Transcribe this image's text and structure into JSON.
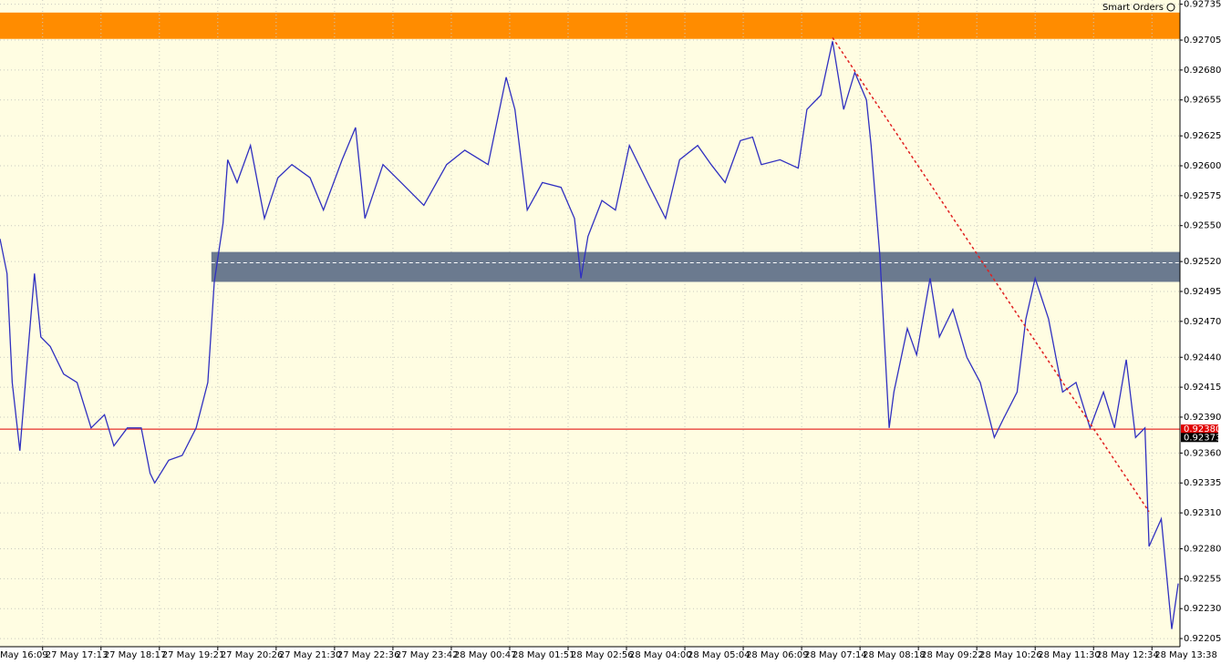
{
  "chart_data": {
    "type": "line",
    "widget_label": "Smart Orders",
    "color": "#3030c0",
    "background": "#fffde2",
    "grid": true,
    "xlim": [
      0.27,
      20.48
    ],
    "ylim": [
      0.921982,
      0.927385
    ],
    "xticks": [
      {
        "value": 0,
        "label": "May 16:09"
      },
      {
        "value": 1,
        "label": "27 May 17:13"
      },
      {
        "value": 2,
        "label": "27 May 18:17"
      },
      {
        "value": 3,
        "label": "27 May 19:21"
      },
      {
        "value": 4,
        "label": "27 May 20:26"
      },
      {
        "value": 5,
        "label": "27 May 21:30"
      },
      {
        "value": 6,
        "label": "27 May 22:36"
      },
      {
        "value": 7,
        "label": "27 May 23:42"
      },
      {
        "value": 8,
        "label": "28 May 00:47"
      },
      {
        "value": 9,
        "label": "28 May 01:51"
      },
      {
        "value": 10,
        "label": "28 May 02:56"
      },
      {
        "value": 11,
        "label": "28 May 04:00"
      },
      {
        "value": 12,
        "label": "28 May 05:04"
      },
      {
        "value": 13,
        "label": "28 May 06:09"
      },
      {
        "value": 14,
        "label": "28 May 07:14"
      },
      {
        "value": 15,
        "label": "28 May 08:18"
      },
      {
        "value": 16,
        "label": "28 May 09:22"
      },
      {
        "value": 17,
        "label": "28 May 10:26"
      },
      {
        "value": 18,
        "label": "28 May 11:30"
      },
      {
        "value": 19,
        "label": "28 May 12:34"
      },
      {
        "value": 20,
        "label": "28 May 13:38"
      }
    ],
    "yticks": [
      0.92735,
      0.92705,
      {
        "value": 0.9268,
        "label": "0.92680"
      },
      0.92655,
      0.92625,
      {
        "value": 0.926,
        "label": "0.92600"
      },
      0.92575,
      {
        "value": 0.9255,
        "label": "0.92550"
      },
      {
        "value": 0.9252,
        "label": "0.92520"
      },
      0.92495,
      {
        "value": 0.9247,
        "label": "0.92470"
      },
      {
        "value": 0.9244,
        "label": "0.92440"
      },
      0.92415,
      {
        "value": 0.9239,
        "label": "0.92390"
      },
      {
        "value": 0.9236,
        "label": "0.92360"
      },
      0.92335,
      {
        "value": 0.9231,
        "label": "0.92310"
      },
      {
        "value": 0.9228,
        "label": "0.92280"
      },
      0.92255,
      {
        "value": 0.9223,
        "label": "0.92230"
      },
      0.92205
    ],
    "x": [
      0.27,
      0.39,
      0.48,
      0.61,
      0.73,
      0.86,
      0.97,
      1.13,
      1.36,
      1.59,
      1.83,
      2.06,
      2.22,
      2.45,
      2.69,
      2.84,
      2.92,
      3.16,
      3.39,
      3.63,
      3.83,
      3.94,
      4.09,
      4.17,
      4.33,
      4.56,
      4.8,
      5.03,
      5.27,
      5.58,
      5.81,
      6.13,
      6.36,
      6.52,
      6.83,
      7.14,
      7.53,
      7.92,
      8.23,
      8.63,
      8.94,
      9.09,
      9.3,
      9.56,
      9.88,
      10.11,
      10.22,
      10.34,
      10.58,
      10.81,
      11.05,
      11.36,
      11.67,
      11.91,
      12.22,
      12.45,
      12.69,
      12.95,
      13.16,
      13.31,
      13.63,
      13.94,
      14.09,
      14.33,
      14.53,
      14.72,
      14.91,
      15.11,
      15.19,
      15.34,
      15.5,
      15.58,
      15.81,
      15.97,
      16.2,
      16.36,
      16.59,
      16.83,
      17.06,
      17.3,
      17.45,
      17.69,
      17.84,
      18,
      18.23,
      18.47,
      18.7,
      18.94,
      19.17,
      19.36,
      19.56,
      19.72,
      19.88,
      19.95,
      20.16,
      20.34,
      20.45
    ],
    "values": [
      0.92539,
      0.9251,
      0.92419,
      0.92362,
      0.92434,
      0.9251,
      0.92457,
      0.92449,
      0.92426,
      0.92419,
      0.92381,
      0.92392,
      0.92366,
      0.92381,
      0.92381,
      0.92343,
      0.92335,
      0.92354,
      0.92358,
      0.92381,
      0.92419,
      0.92503,
      0.92552,
      0.92605,
      0.92586,
      0.92617,
      0.92556,
      0.9259,
      0.92601,
      0.9259,
      0.92563,
      0.92605,
      0.92632,
      0.92556,
      0.92601,
      0.92586,
      0.92567,
      0.92601,
      0.92613,
      0.92601,
      0.92674,
      0.92647,
      0.92563,
      0.92586,
      0.92582,
      0.92556,
      0.92506,
      0.92541,
      0.92571,
      0.92563,
      0.92617,
      0.92586,
      0.92556,
      0.92605,
      0.92617,
      0.92601,
      0.92586,
      0.92621,
      0.92624,
      0.92601,
      0.92605,
      0.92598,
      0.92647,
      0.92659,
      0.92704,
      0.92647,
      0.92678,
      0.92655,
      0.92617,
      0.92525,
      0.92381,
      0.92411,
      0.92464,
      0.92442,
      0.92506,
      0.92457,
      0.9248,
      0.9244,
      0.92419,
      0.92373,
      0.92388,
      0.92411,
      0.92472,
      0.92506,
      0.92472,
      0.92411,
      0.92419,
      0.92381,
      0.92411,
      0.92381,
      0.92438,
      0.92373,
      0.92381,
      0.92282,
      0.92305,
      0.92213,
      0.92251
    ],
    "bands": [
      {
        "low": 0.92706,
        "high": 0.92728,
        "color": "#ff8c00"
      }
    ],
    "zone": {
      "x_start": 3.89,
      "low": 0.92503,
      "high": 0.92528,
      "mid": 0.92519,
      "color": "#6b7a8f"
    },
    "trend_line": {
      "x": [
        14.53,
        19.95
      ],
      "values": [
        0.92707,
        0.92311
      ],
      "color": "#e02020"
    },
    "price_lines": [
      {
        "value": 0.9238,
        "label": "0.92380",
        "color": "#e00000",
        "line": true
      },
      {
        "value": 0.92373,
        "label": "0.92373",
        "color": "#000000",
        "line": false
      }
    ]
  }
}
